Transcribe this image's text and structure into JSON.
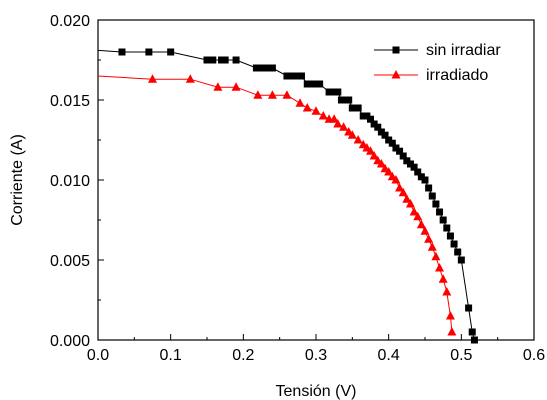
{
  "chart_data": {
    "type": "line",
    "title": "",
    "xlabel": "Tensión (V)",
    "ylabel": "Corriente (A)",
    "xlim": [
      0.0,
      0.6
    ],
    "ylim": [
      0.0,
      0.02
    ],
    "x_ticks": [
      "0.0",
      "0.1",
      "0.2",
      "0.3",
      "0.4",
      "0.5",
      "0.6"
    ],
    "y_ticks": [
      "0.000",
      "0.005",
      "0.010",
      "0.015",
      "0.020"
    ],
    "grid": false,
    "legend_position": "top-right",
    "series": [
      {
        "name": "sin irradiar",
        "color": "#000000",
        "marker": "square",
        "x": [
          0.033,
          0.07,
          0.1,
          0.15,
          0.158,
          0.17,
          0.175,
          0.19,
          0.218,
          0.225,
          0.233,
          0.24,
          0.26,
          0.265,
          0.27,
          0.275,
          0.28,
          0.288,
          0.295,
          0.3,
          0.305,
          0.318,
          0.323,
          0.33,
          0.335,
          0.34,
          0.345,
          0.35,
          0.358,
          0.365,
          0.37,
          0.375,
          0.38,
          0.385,
          0.39,
          0.395,
          0.4,
          0.405,
          0.41,
          0.415,
          0.42,
          0.425,
          0.43,
          0.435,
          0.44,
          0.445,
          0.45,
          0.455,
          0.46,
          0.465,
          0.47,
          0.475,
          0.48,
          0.485,
          0.49,
          0.495,
          0.5,
          0.51,
          0.515,
          0.518
        ],
        "y": [
          0.018,
          0.018,
          0.018,
          0.0175,
          0.0175,
          0.0175,
          0.0175,
          0.0175,
          0.017,
          0.017,
          0.017,
          0.017,
          0.0165,
          0.0165,
          0.0165,
          0.0165,
          0.0165,
          0.016,
          0.016,
          0.016,
          0.016,
          0.0155,
          0.0155,
          0.0155,
          0.015,
          0.015,
          0.015,
          0.0145,
          0.0145,
          0.014,
          0.014,
          0.0138,
          0.0135,
          0.0133,
          0.013,
          0.0128,
          0.0125,
          0.0123,
          0.012,
          0.0118,
          0.0115,
          0.0112,
          0.011,
          0.0108,
          0.0105,
          0.0102,
          0.01,
          0.0095,
          0.009,
          0.0085,
          0.008,
          0.0075,
          0.007,
          0.0065,
          0.006,
          0.0055,
          0.005,
          0.002,
          0.0005,
          0.0
        ]
      },
      {
        "name": "irradiado",
        "color": "#ff0000",
        "marker": "triangle",
        "x": [
          0.075,
          0.127,
          0.165,
          0.19,
          0.22,
          0.24,
          0.26,
          0.278,
          0.288,
          0.3,
          0.31,
          0.318,
          0.325,
          0.33,
          0.338,
          0.345,
          0.35,
          0.358,
          0.365,
          0.37,
          0.375,
          0.38,
          0.385,
          0.39,
          0.395,
          0.4,
          0.405,
          0.41,
          0.415,
          0.42,
          0.425,
          0.43,
          0.435,
          0.44,
          0.445,
          0.45,
          0.455,
          0.46,
          0.465,
          0.47,
          0.475,
          0.48,
          0.485,
          0.487
        ],
        "y": [
          0.0163,
          0.0163,
          0.0158,
          0.0158,
          0.0153,
          0.0153,
          0.0153,
          0.0148,
          0.0145,
          0.0143,
          0.014,
          0.0138,
          0.0138,
          0.0135,
          0.0133,
          0.013,
          0.0128,
          0.0125,
          0.0122,
          0.012,
          0.0118,
          0.0115,
          0.0112,
          0.011,
          0.0107,
          0.0105,
          0.0102,
          0.01,
          0.0095,
          0.0092,
          0.0088,
          0.0085,
          0.008,
          0.0077,
          0.0072,
          0.0068,
          0.0063,
          0.0058,
          0.0052,
          0.0045,
          0.0038,
          0.003,
          0.0015,
          0.0005
        ]
      }
    ],
    "leading_segments": [
      {
        "series": "sin irradiar",
        "from": [
          0.0,
          0.0181
        ]
      },
      {
        "series": "irradiado",
        "from": [
          0.0,
          0.0165
        ]
      }
    ]
  }
}
